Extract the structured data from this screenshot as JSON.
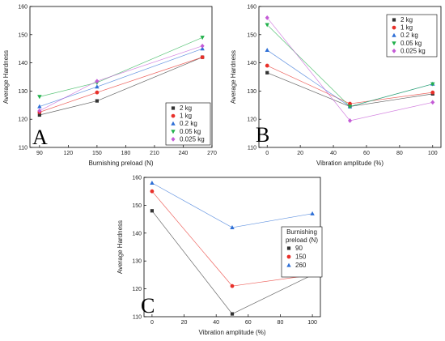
{
  "chart_data": [
    {
      "type": "line",
      "panel_letter": "A",
      "xlabel": "Burnishing preload (N)",
      "ylabel": "Average Hardness",
      "xlim": [
        80,
        270
      ],
      "ylim": [
        110,
        160
      ],
      "xticks": [
        90,
        120,
        150,
        180,
        210,
        240,
        270
      ],
      "yticks": [
        110,
        120,
        130,
        140,
        150,
        160
      ],
      "legend_position": "bottom-right",
      "legend_title": "",
      "x": [
        90,
        150,
        260
      ],
      "series": [
        {
          "name": "2 kg",
          "values": [
            121.5,
            126.5,
            142
          ],
          "color": "#333333",
          "marker": "square"
        },
        {
          "name": "1 kg",
          "values": [
            122.5,
            129.5,
            142
          ],
          "color": "#e8302a",
          "marker": "circle"
        },
        {
          "name": "0.2 kg",
          "values": [
            124.5,
            131.5,
            145
          ],
          "color": "#2e6fd6",
          "marker": "triangle-up"
        },
        {
          "name": "0.05 kg",
          "values": [
            128,
            133,
            149
          ],
          "color": "#21b04b",
          "marker": "triangle-down"
        },
        {
          "name": "0.025 kg",
          "values": [
            123,
            133.5,
            146
          ],
          "color": "#c45ad6",
          "marker": "diamond"
        }
      ]
    },
    {
      "type": "line",
      "panel_letter": "B",
      "xlabel": "Vibration amplitude (%)",
      "ylabel": "Average Hardness",
      "xlim": [
        -5,
        105
      ],
      "ylim": [
        110,
        160
      ],
      "xticks": [
        0,
        20,
        40,
        60,
        80,
        100
      ],
      "yticks": [
        110,
        120,
        130,
        140,
        150,
        160
      ],
      "legend_position": "top-right",
      "legend_title": "",
      "x": [
        0,
        50,
        100
      ],
      "series": [
        {
          "name": "2 kg",
          "values": [
            136.5,
            124.5,
            129
          ],
          "color": "#333333",
          "marker": "square"
        },
        {
          "name": "1 kg",
          "values": [
            139,
            125.5,
            129.5
          ],
          "color": "#e8302a",
          "marker": "circle"
        },
        {
          "name": "0.2 kg",
          "values": [
            144.5,
            124.5,
            132.5
          ],
          "color": "#2e6fd6",
          "marker": "triangle-up"
        },
        {
          "name": "0.05 kg",
          "values": [
            153.5,
            124.5,
            132.5
          ],
          "color": "#21b04b",
          "marker": "triangle-down"
        },
        {
          "name": "0.025 kg",
          "values": [
            156,
            119.5,
            126
          ],
          "color": "#c45ad6",
          "marker": "diamond"
        }
      ]
    },
    {
      "type": "line",
      "panel_letter": "C",
      "xlabel": "Vibration amplitude (%)",
      "ylabel": "Average Hardness",
      "xlim": [
        -5,
        105
      ],
      "ylim": [
        110,
        160
      ],
      "xticks": [
        0,
        20,
        40,
        60,
        80,
        100
      ],
      "yticks": [
        110,
        120,
        130,
        140,
        150,
        160
      ],
      "legend_position": "right",
      "legend_title": [
        "Burnishing",
        "preload (N)"
      ],
      "x": [
        0,
        50,
        100
      ],
      "series": [
        {
          "name": "90",
          "values": [
            148,
            111,
            125
          ],
          "color": "#333333",
          "marker": "square"
        },
        {
          "name": "150",
          "values": [
            155,
            121,
            125
          ],
          "color": "#e8302a",
          "marker": "circle"
        },
        {
          "name": "260",
          "values": [
            158,
            142,
            147
          ],
          "color": "#2e6fd6",
          "marker": "triangle-up"
        }
      ]
    }
  ]
}
